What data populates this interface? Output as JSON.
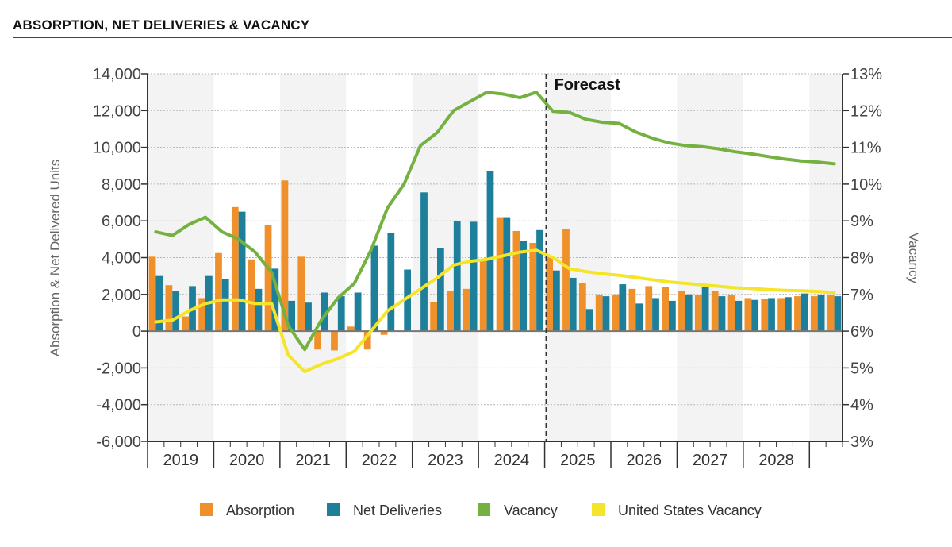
{
  "header": {
    "title": "ABSORPTION, NET DELIVERIES & VACANCY"
  },
  "colors": {
    "absorption": "#f0902a",
    "net_deliveries": "#1d7f99",
    "vacancy": "#74b140",
    "us_vacancy": "#f4e52a",
    "band": "#f3f3f3",
    "grid": "#b5b5b5"
  },
  "chart_data": {
    "type": "bar",
    "title": "ABSORPTION, NET DELIVERIES & VACANCY",
    "ylabel": "Absorption & Net Delivered Units",
    "y2label": "Vacancy",
    "ylim": [
      -6000,
      14000
    ],
    "y2lim": [
      3,
      13
    ],
    "yticks": [
      "14,000",
      "12,000",
      "10,000",
      "8,000",
      "6,000",
      "4,000",
      "2,000",
      "0",
      "-2,000",
      "-4,000",
      "-6,000"
    ],
    "y2ticks": [
      "13%",
      "12%",
      "11%",
      "10%",
      "9%",
      "8%",
      "7%",
      "6%",
      "5%",
      "4%",
      "3%"
    ],
    "years": [
      "2019",
      "2020",
      "2021",
      "2022",
      "2023",
      "2024",
      "2025",
      "2026",
      "2027",
      "2028"
    ],
    "quarters_per_year": 4,
    "grid": true,
    "legend_position": "bottom",
    "annotation": {
      "text": "Forecast",
      "at_quarter_index": 24
    },
    "series": [
      {
        "name": "Absorption",
        "kind": "bar",
        "values": [
          4050,
          2500,
          800,
          1800,
          4250,
          6750,
          3900,
          5750,
          8200,
          4050,
          -1000,
          -1050,
          250,
          -1000,
          -200,
          0,
          0,
          1600,
          2200,
          2300,
          3850,
          6200,
          5450,
          4800,
          4100,
          5550,
          2600,
          1950,
          2000,
          2300,
          2450,
          2400,
          2200,
          1950,
          2200,
          1950,
          1800,
          1750,
          1800,
          1900,
          1900,
          1950
        ]
      },
      {
        "name": "Net Deliveries",
        "kind": "bar",
        "values": [
          3000,
          2200,
          2450,
          3000,
          2850,
          6500,
          2300,
          3400,
          1650,
          1550,
          2100,
          1900,
          2100,
          4650,
          5350,
          3350,
          7550,
          4500,
          6000,
          5950,
          8700,
          6200,
          4900,
          5500,
          3300,
          2900,
          1200,
          1900,
          2550,
          1500,
          1800,
          1650,
          2000,
          2400,
          1900,
          1650,
          1700,
          1800,
          1850,
          2050,
          1950,
          1900
        ]
      },
      {
        "name": "Vacancy",
        "kind": "line",
        "axis": "right",
        "values": [
          8.7,
          8.6,
          8.9,
          9.1,
          8.7,
          8.5,
          8.15,
          7.6,
          6.15,
          5.5,
          6.3,
          6.9,
          7.3,
          8.2,
          9.35,
          10.0,
          11.05,
          11.4,
          12.0,
          12.25,
          12.5,
          12.45,
          12.35,
          12.5,
          11.98,
          11.95,
          11.76,
          11.68,
          11.65,
          11.42,
          11.25,
          11.12,
          11.05,
          11.02,
          10.96,
          10.88,
          10.82,
          10.75,
          10.68,
          10.63,
          10.6,
          10.55
        ]
      },
      {
        "name": "United States Vacancy",
        "kind": "line",
        "axis": "right",
        "values": [
          6.25,
          6.3,
          6.55,
          6.75,
          6.85,
          6.85,
          6.75,
          6.75,
          5.35,
          4.9,
          5.1,
          5.25,
          5.45,
          6.0,
          6.55,
          6.85,
          7.15,
          7.45,
          7.8,
          7.9,
          7.95,
          8.05,
          8.15,
          8.2,
          8.0,
          7.7,
          7.62,
          7.56,
          7.52,
          7.46,
          7.4,
          7.34,
          7.3,
          7.26,
          7.22,
          7.18,
          7.16,
          7.13,
          7.11,
          7.1,
          7.08,
          7.05
        ]
      }
    ]
  }
}
